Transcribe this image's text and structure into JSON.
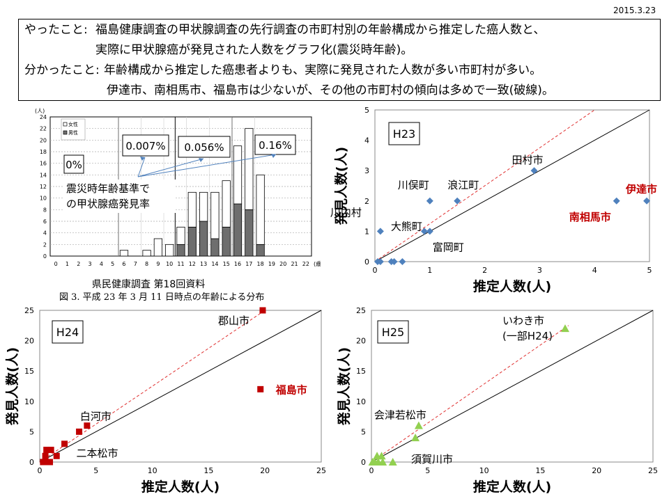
{
  "date": "2015.3.23",
  "summary": {
    "line1_label": "やったこと:",
    "line1": "福島健康調査の甲状腺調査の先行調査の市町村別の年齢構成から推定した癌人数と、",
    "line2": "実際に甲状腺癌が発見された人数をグラフ化(震災時年齢)。",
    "line3_label": "分かったこと:",
    "line3": "年齢構成から推定した癌患者よりも、実際に発見された人数が多い市町村が多い。",
    "line4": "伊達市、南相馬市、福島市は少ないが、その他の市町村の傾向は多めで一致(破線)。"
  },
  "histogram": {
    "source": "県民健康調査 第18回資料",
    "caption": "図 3. 平成 23 年 3 月 11 日時点の年齢による分布",
    "y_unit": "(人)",
    "x_unit": "(歳)",
    "legend": [
      "女性",
      "男性"
    ],
    "rate_boxes": [
      "0%",
      "0.007%",
      "0.056%",
      "0.16%"
    ],
    "annotation": [
      "震災時年齢基準で",
      "の甲状腺癌発見率"
    ]
  },
  "chart_data": [
    {
      "type": "bar",
      "stacked": true,
      "categories": [
        "0",
        "1",
        "2",
        "3",
        "4",
        "5",
        "6",
        "7",
        "8",
        "9",
        "10",
        "11",
        "12",
        "13",
        "14",
        "15",
        "16",
        "17",
        "18",
        "19",
        "20",
        "21",
        "22"
      ],
      "series": [
        {
          "name": "男性",
          "values": [
            0,
            0,
            0,
            0,
            0,
            0,
            0,
            0,
            0,
            0,
            0,
            2,
            5,
            6,
            3,
            5,
            9,
            8,
            2,
            0,
            0,
            0,
            0
          ]
        },
        {
          "name": "女性",
          "values": [
            0,
            0,
            0,
            0,
            0,
            0,
            1,
            0,
            1,
            3,
            2,
            3,
            6,
            5,
            8,
            8,
            10,
            14,
            12,
            0,
            0,
            0,
            0
          ]
        }
      ],
      "ylabel": "(人)",
      "xlabel": "(歳)",
      "ylim": [
        0,
        24
      ],
      "yticks": [
        0,
        2,
        4,
        6,
        8,
        10,
        12,
        14,
        16,
        18,
        20,
        22,
        24
      ]
    },
    {
      "type": "scatter",
      "title": "H23",
      "xlabel": "推定人数(人)",
      "ylabel": "発見人数(人)",
      "xlim": [
        0,
        5
      ],
      "ylim": [
        0,
        5
      ],
      "xticks": [
        0,
        1,
        2,
        3,
        4,
        5
      ],
      "yticks": [
        0,
        1,
        2,
        3,
        4,
        5
      ],
      "marker": "diamond",
      "color": "#4f81bd",
      "points": [
        [
          0.05,
          0
        ],
        [
          0.1,
          0
        ],
        [
          0.3,
          0
        ],
        [
          0.35,
          0
        ],
        [
          0.5,
          0
        ],
        [
          0.1,
          1
        ],
        [
          0.9,
          1
        ],
        [
          1.0,
          1
        ],
        [
          1.0,
          2
        ],
        [
          1.5,
          2
        ],
        [
          2.9,
          3
        ],
        [
          4.4,
          2
        ],
        [
          4.95,
          2
        ]
      ],
      "labels": [
        {
          "text": "川俣町",
          "x": 1.0,
          "y": 2,
          "color": "#000"
        },
        {
          "text": "浪江町",
          "x": 1.5,
          "y": 2,
          "color": "#000"
        },
        {
          "text": "川内村",
          "x": 0.1,
          "y": 1,
          "color": "#000"
        },
        {
          "text": "大熊町",
          "x": 0.9,
          "y": 1,
          "color": "#000"
        },
        {
          "text": "富岡町",
          "x": 1.0,
          "y": 1,
          "color": "#000"
        },
        {
          "text": "田村市",
          "x": 2.9,
          "y": 3,
          "color": "#000"
        },
        {
          "text": "伊達市",
          "x": 4.95,
          "y": 2,
          "color": "#c00000"
        },
        {
          "text": "南相馬市",
          "x": 4.4,
          "y": 2,
          "color": "#c00000"
        }
      ],
      "solid_line": [
        [
          0,
          0
        ],
        [
          5,
          5
        ]
      ],
      "dashed_line": [
        [
          0,
          0
        ],
        [
          4.0,
          5
        ]
      ]
    },
    {
      "type": "scatter",
      "title": "H24",
      "xlabel": "推定人数(人)",
      "ylabel": "発見人数(人)",
      "xlim": [
        0,
        25
      ],
      "ylim": [
        0,
        25
      ],
      "xticks": [
        0,
        5,
        10,
        15,
        20,
        25
      ],
      "yticks": [
        0,
        5,
        10,
        15,
        20,
        25
      ],
      "marker": "square",
      "color": "#c00000",
      "points": [
        [
          0.3,
          0
        ],
        [
          0.5,
          0
        ],
        [
          0.7,
          0
        ],
        [
          0.9,
          0
        ],
        [
          0.5,
          1
        ],
        [
          0.6,
          2
        ],
        [
          1.0,
          2
        ],
        [
          1.5,
          1
        ],
        [
          2.2,
          3
        ],
        [
          3.5,
          5
        ],
        [
          4.2,
          6
        ],
        [
          19.6,
          12
        ],
        [
          19.8,
          25
        ]
      ],
      "labels": [
        {
          "text": "郡山市",
          "x": 19.8,
          "y": 25,
          "color": "#000"
        },
        {
          "text": "福島市",
          "x": 19.6,
          "y": 12,
          "color": "#c00000"
        },
        {
          "text": "白河市",
          "x": 4.2,
          "y": 6,
          "color": "#000"
        },
        {
          "text": "二本松市",
          "x": 3.5,
          "y": 5,
          "color": "#000"
        }
      ],
      "solid_line": [
        [
          0,
          0
        ],
        [
          25,
          25
        ]
      ],
      "dashed_line": [
        [
          0,
          0
        ],
        [
          20,
          25
        ]
      ]
    },
    {
      "type": "scatter",
      "title": "H25",
      "xlabel": "推定人数(人)",
      "ylabel": "発見人数(人)",
      "xlim": [
        0,
        25
      ],
      "ylim": [
        0,
        25
      ],
      "xticks": [
        0,
        5,
        10,
        15,
        20,
        25
      ],
      "yticks": [
        0,
        5,
        10,
        15,
        20,
        25
      ],
      "marker": "triangle",
      "color": "#92d050",
      "points": [
        [
          0.1,
          0
        ],
        [
          0.3,
          0
        ],
        [
          0.5,
          1
        ],
        [
          0.9,
          1
        ],
        [
          0.6,
          0
        ],
        [
          1.0,
          0
        ],
        [
          1.9,
          0
        ],
        [
          3.9,
          4
        ],
        [
          4.2,
          6
        ],
        [
          17.2,
          22
        ]
      ],
      "labels": [
        {
          "text": "いわき市",
          "x": 17.2,
          "y": 22,
          "color": "#000"
        },
        {
          "text": "(一部H24)",
          "x": 17.2,
          "y": 22,
          "color": "#000"
        },
        {
          "text": "会津若松市",
          "x": 4.2,
          "y": 6,
          "color": "#000"
        },
        {
          "text": "須賀川市",
          "x": 3.9,
          "y": 4,
          "color": "#000"
        }
      ],
      "solid_line": [
        [
          0,
          0
        ],
        [
          25,
          25
        ]
      ],
      "dashed_line": [
        [
          0,
          0
        ],
        [
          17.5,
          22.5
        ]
      ]
    }
  ]
}
